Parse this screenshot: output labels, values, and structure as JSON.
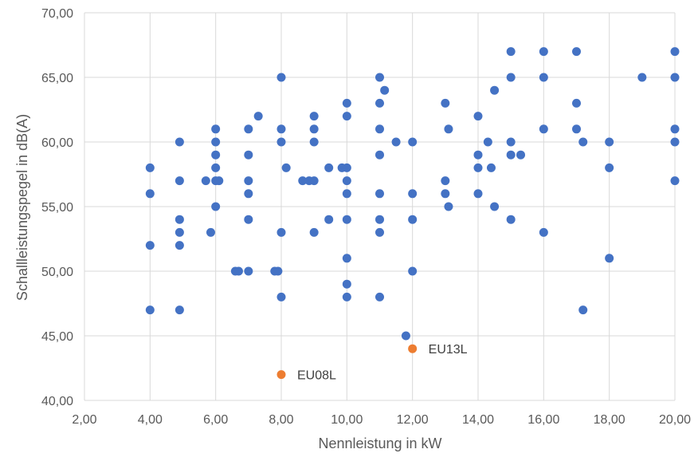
{
  "chart_data": {
    "type": "scatter",
    "xlabel": "Nennleistung in kW",
    "ylabel": "Schallleistungspegel in dB(A)",
    "xlim": [
      2,
      20
    ],
    "ylim": [
      40,
      70
    ],
    "x_ticks": [
      "2,00",
      "4,00",
      "6,00",
      "8,00",
      "10,00",
      "12,00",
      "14,00",
      "16,00",
      "18,00",
      "20,00"
    ],
    "y_ticks": [
      "40,00",
      "45,00",
      "50,00",
      "55,00",
      "60,00",
      "65,00",
      "70,00"
    ],
    "grid": true,
    "legend": "none",
    "colors": {
      "main": "#4472c4",
      "highlight": "#ed7d31"
    },
    "series": [
      {
        "color": "#4472c4",
        "points": [
          [
            4,
            58
          ],
          [
            4,
            56
          ],
          [
            4,
            52
          ],
          [
            4,
            47
          ],
          [
            4.9,
            60
          ],
          [
            4.9,
            57
          ],
          [
            4.9,
            54
          ],
          [
            4.9,
            53
          ],
          [
            4.9,
            52
          ],
          [
            4.9,
            47
          ],
          [
            5.7,
            57
          ],
          [
            5.85,
            53
          ],
          [
            6,
            61
          ],
          [
            6,
            60
          ],
          [
            6,
            59
          ],
          [
            6,
            58
          ],
          [
            6,
            57
          ],
          [
            6.1,
            57
          ],
          [
            6,
            55
          ],
          [
            6.6,
            50
          ],
          [
            6.7,
            50
          ],
          [
            7,
            61
          ],
          [
            7,
            59
          ],
          [
            7,
            57
          ],
          [
            7,
            56
          ],
          [
            7,
            54
          ],
          [
            7,
            50
          ],
          [
            7.3,
            62
          ],
          [
            7.8,
            50
          ],
          [
            7.9,
            50
          ],
          [
            8,
            65
          ],
          [
            8,
            61
          ],
          [
            8,
            60
          ],
          [
            8,
            53
          ],
          [
            8,
            48
          ],
          [
            8.15,
            58
          ],
          [
            8.65,
            57
          ],
          [
            8.85,
            57
          ],
          [
            9,
            57
          ],
          [
            9,
            62
          ],
          [
            9,
            61
          ],
          [
            9,
            60
          ],
          [
            9,
            53
          ],
          [
            9.45,
            58
          ],
          [
            9.45,
            54
          ],
          [
            9.85,
            58
          ],
          [
            10,
            58
          ],
          [
            10,
            63
          ],
          [
            10,
            62
          ],
          [
            10,
            57
          ],
          [
            10,
            56
          ],
          [
            10,
            54
          ],
          [
            10,
            51
          ],
          [
            10,
            49
          ],
          [
            10,
            48
          ],
          [
            11,
            65
          ],
          [
            11,
            63
          ],
          [
            11,
            61
          ],
          [
            11,
            59
          ],
          [
            11,
            56
          ],
          [
            11,
            54
          ],
          [
            11,
            53
          ],
          [
            11,
            48
          ],
          [
            11.15,
            64
          ],
          [
            11.5,
            60
          ],
          [
            11.8,
            45
          ],
          [
            12,
            60
          ],
          [
            12,
            56
          ],
          [
            12,
            54
          ],
          [
            12,
            50
          ],
          [
            13,
            63
          ],
          [
            13,
            57
          ],
          [
            13,
            56
          ],
          [
            13.1,
            61
          ],
          [
            13.1,
            55
          ],
          [
            14,
            62
          ],
          [
            14,
            59
          ],
          [
            14,
            58
          ],
          [
            14,
            56
          ],
          [
            14.3,
            60
          ],
          [
            14.4,
            58
          ],
          [
            14.5,
            64
          ],
          [
            14.5,
            55
          ],
          [
            15,
            67
          ],
          [
            15,
            65
          ],
          [
            15,
            60
          ],
          [
            15,
            59
          ],
          [
            15,
            54
          ],
          [
            15.3,
            59
          ],
          [
            16,
            67
          ],
          [
            16,
            65
          ],
          [
            16,
            61
          ],
          [
            16,
            53
          ],
          [
            17,
            67
          ],
          [
            17,
            63
          ],
          [
            17,
            61
          ],
          [
            17.2,
            60
          ],
          [
            17.2,
            47
          ],
          [
            18,
            60
          ],
          [
            18,
            58
          ],
          [
            18,
            51
          ],
          [
            19,
            65
          ],
          [
            20,
            67
          ],
          [
            20,
            65
          ],
          [
            20,
            61
          ],
          [
            20,
            60
          ],
          [
            20,
            57
          ]
        ]
      },
      {
        "color": "#ed7d31",
        "points": [
          [
            8,
            42
          ],
          [
            12,
            44
          ]
        ],
        "labels": [
          "EU08L",
          "EU13L"
        ]
      }
    ]
  }
}
